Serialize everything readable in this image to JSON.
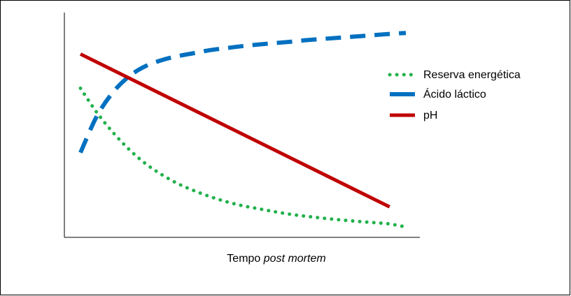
{
  "chart_data": {
    "type": "line",
    "title": "",
    "xlabel_prefix": "Tempo ",
    "xlabel_italic": "post mortem",
    "ylabel": "",
    "x_ticks": "none",
    "y_ticks": "none",
    "xlim": [
      0,
      100
    ],
    "ylim": [
      0,
      100
    ],
    "grid": false,
    "legend_position": "right",
    "series": [
      {
        "name": "Reserva energética",
        "color": "#22b14c",
        "style": "dotted",
        "x": [
          0,
          5,
          10,
          15,
          20,
          25,
          30,
          35,
          40,
          45,
          50,
          55,
          60,
          65,
          70,
          75,
          80,
          85,
          90,
          95,
          100
        ],
        "y": [
          70,
          58,
          48,
          39.5,
          32.5,
          27,
          22.5,
          19,
          16,
          13.5,
          11.5,
          10,
          8.5,
          7.2,
          6.2,
          5.3,
          4.5,
          3.8,
          3.2,
          2.5,
          1
        ]
      },
      {
        "name": "Ácido láctico",
        "color": "#0070c0",
        "style": "dashed",
        "x": [
          0,
          5,
          10,
          15,
          20,
          25,
          30,
          35,
          40,
          45,
          50,
          55,
          60,
          65,
          70,
          75,
          80,
          85,
          90,
          95,
          100
        ],
        "y": [
          38,
          56,
          68,
          76,
          81,
          84,
          86,
          87.5,
          89,
          90,
          91,
          91.8,
          92.5,
          93.2,
          94,
          94.6,
          95.2,
          95.8,
          96.4,
          97,
          97.5
        ]
      },
      {
        "name": "pH",
        "color": "#c00000",
        "style": "solid",
        "x": [
          0,
          95
        ],
        "y": [
          87,
          11
        ]
      }
    ]
  }
}
